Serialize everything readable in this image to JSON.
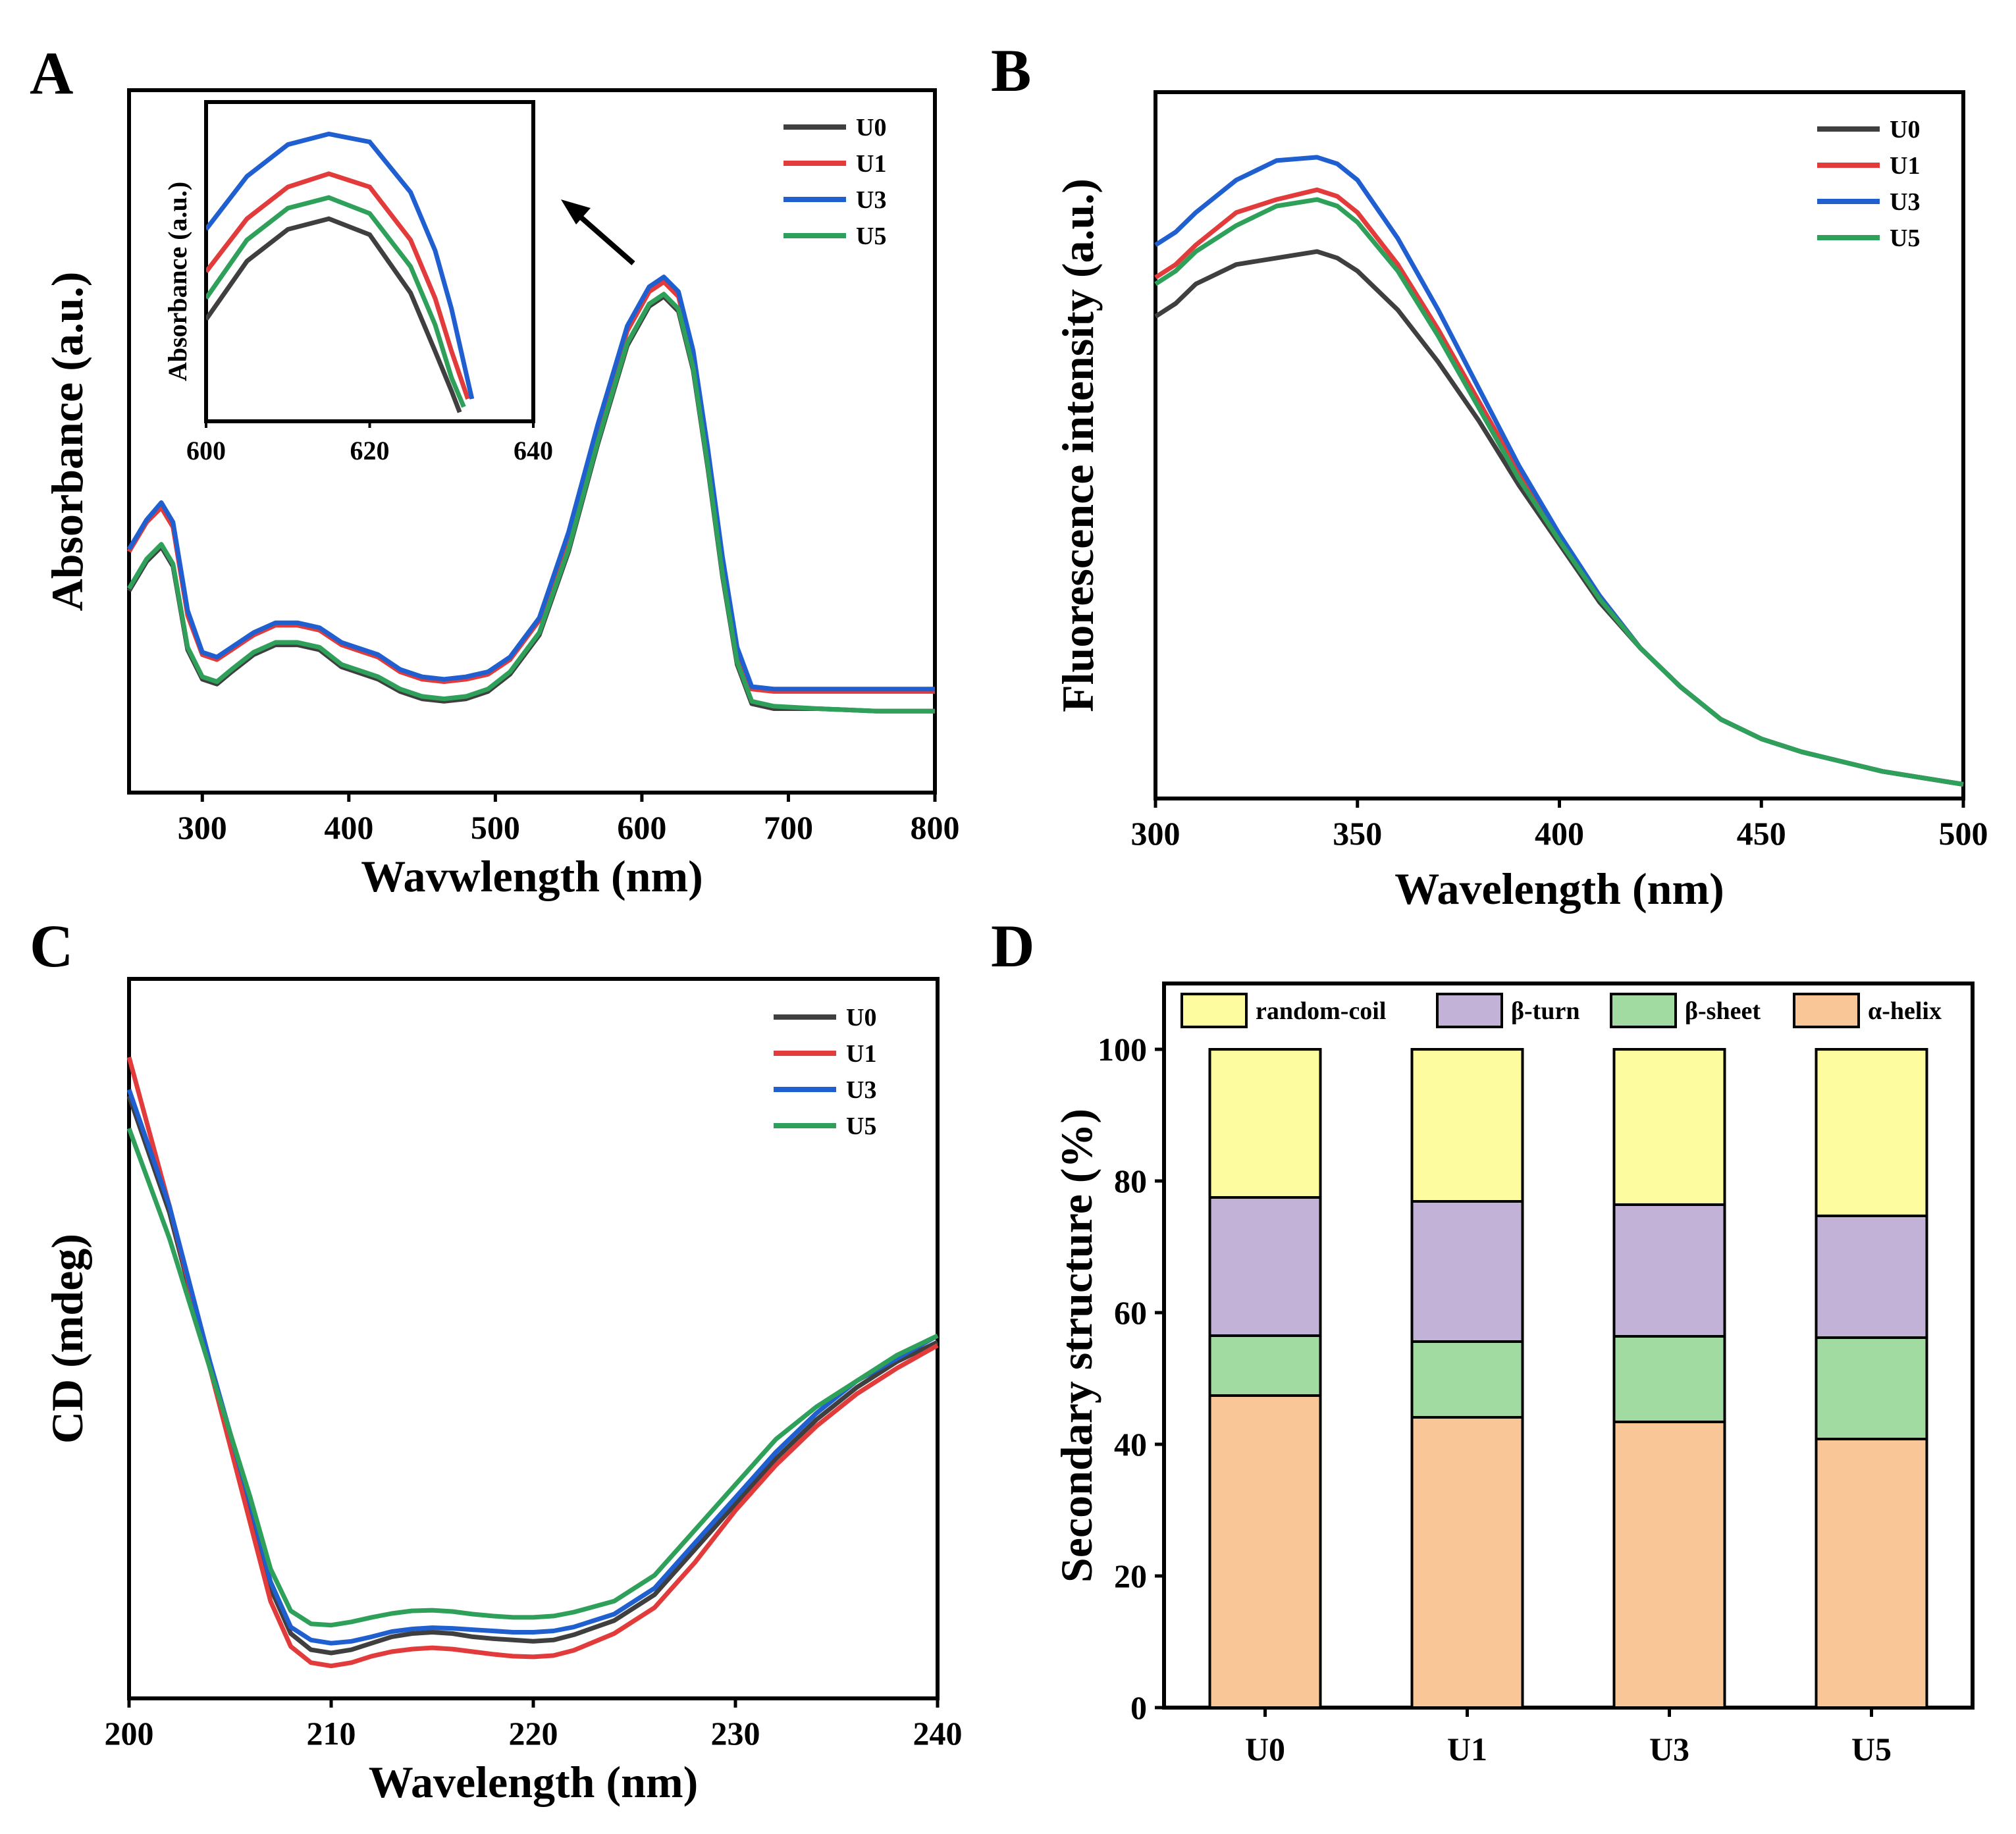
{
  "colors": {
    "U0": "#3f3f3f",
    "U1": "#e23b3b",
    "U3": "#1f5fcf",
    "U5": "#2ea05a",
    "random-coil": "#fdfda0",
    "beta-turn": "#c2b2d8",
    "beta-sheet": "#a1dba1",
    "alpha-helix": "#f9c698"
  },
  "chart_data": [
    {
      "panel": "A",
      "type": "line",
      "xlabel": "Wavwlength (nm)",
      "ylabel": "Absorbance (a.u.)",
      "xlim": [
        250,
        800
      ],
      "ylim": [
        0,
        1
      ],
      "xticks": [
        300,
        400,
        500,
        600,
        700,
        800
      ],
      "legend": [
        "U0",
        "U1",
        "U3",
        "U5"
      ],
      "legend_position": "top-right",
      "series": [
        {
          "name": "U0",
          "x": [
            250,
            262,
            272,
            280,
            290,
            300,
            310,
            320,
            335,
            350,
            365,
            380,
            395,
            410,
            420,
            435,
            450,
            465,
            480,
            495,
            510,
            530,
            550,
            570,
            590,
            605,
            615,
            625,
            635,
            645,
            655,
            665,
            675,
            690,
            720,
            760,
            800
          ],
          "y": [
            0.3,
            0.36,
            0.39,
            0.35,
            0.18,
            0.12,
            0.11,
            0.135,
            0.17,
            0.19,
            0.19,
            0.18,
            0.145,
            0.13,
            0.12,
            0.095,
            0.08,
            0.075,
            0.08,
            0.095,
            0.13,
            0.21,
            0.38,
            0.6,
            0.8,
            0.88,
            0.9,
            0.87,
            0.75,
            0.55,
            0.33,
            0.15,
            0.07,
            0.06,
            0.06,
            0.055,
            0.055
          ]
        },
        {
          "name": "U1",
          "x": [
            250,
            262,
            272,
            280,
            290,
            300,
            310,
            320,
            335,
            350,
            365,
            380,
            395,
            410,
            420,
            435,
            450,
            465,
            480,
            495,
            510,
            530,
            550,
            570,
            590,
            605,
            615,
            625,
            635,
            645,
            655,
            665,
            675,
            690,
            720,
            760,
            800
          ],
          "y": [
            0.38,
            0.44,
            0.47,
            0.43,
            0.25,
            0.17,
            0.16,
            0.18,
            0.21,
            0.23,
            0.23,
            0.22,
            0.19,
            0.175,
            0.165,
            0.135,
            0.12,
            0.115,
            0.12,
            0.13,
            0.16,
            0.24,
            0.41,
            0.63,
            0.83,
            0.91,
            0.93,
            0.9,
            0.78,
            0.58,
            0.36,
            0.18,
            0.1,
            0.095,
            0.095,
            0.095,
            0.095
          ]
        },
        {
          "name": "U3",
          "x": [
            250,
            262,
            272,
            280,
            290,
            300,
            310,
            320,
            335,
            350,
            365,
            380,
            395,
            410,
            420,
            435,
            450,
            465,
            480,
            495,
            510,
            530,
            550,
            570,
            590,
            605,
            615,
            625,
            635,
            645,
            655,
            665,
            675,
            690,
            720,
            760,
            800
          ],
          "y": [
            0.385,
            0.445,
            0.48,
            0.44,
            0.26,
            0.175,
            0.165,
            0.185,
            0.215,
            0.235,
            0.235,
            0.225,
            0.195,
            0.18,
            0.17,
            0.14,
            0.125,
            0.12,
            0.125,
            0.135,
            0.165,
            0.245,
            0.42,
            0.64,
            0.84,
            0.92,
            0.94,
            0.91,
            0.79,
            0.59,
            0.37,
            0.185,
            0.105,
            0.1,
            0.1,
            0.1,
            0.1
          ]
        },
        {
          "name": "U5",
          "x": [
            250,
            262,
            272,
            280,
            290,
            300,
            310,
            320,
            335,
            350,
            365,
            380,
            395,
            410,
            420,
            435,
            450,
            465,
            480,
            495,
            510,
            530,
            550,
            570,
            590,
            605,
            615,
            625,
            635,
            645,
            655,
            665,
            675,
            690,
            720,
            760,
            800
          ],
          "y": [
            0.305,
            0.365,
            0.395,
            0.355,
            0.185,
            0.125,
            0.115,
            0.14,
            0.175,
            0.195,
            0.195,
            0.185,
            0.15,
            0.135,
            0.125,
            0.1,
            0.085,
            0.08,
            0.085,
            0.1,
            0.135,
            0.215,
            0.385,
            0.605,
            0.805,
            0.885,
            0.905,
            0.875,
            0.755,
            0.555,
            0.335,
            0.155,
            0.075,
            0.065,
            0.06,
            0.055,
            0.055
          ]
        }
      ],
      "inset": {
        "xlabel": "",
        "ylabel": "Absorbance (a.u.)",
        "xlim": [
          600,
          640
        ],
        "ylim": [
          0,
          1
        ],
        "xticks": [
          600,
          620,
          640
        ],
        "series": [
          {
            "name": "U0",
            "x": [
              600,
              605,
              610,
              615,
              620,
              625,
              628,
              630,
              631
            ],
            "y": [
              0.3,
              0.52,
              0.64,
              0.68,
              0.62,
              0.4,
              0.18,
              0.03,
              -0.05
            ]
          },
          {
            "name": "U1",
            "x": [
              600,
              605,
              610,
              615,
              620,
              625,
              628,
              630,
              632
            ],
            "y": [
              0.48,
              0.68,
              0.8,
              0.85,
              0.8,
              0.6,
              0.38,
              0.18,
              0.0
            ]
          },
          {
            "name": "U3",
            "x": [
              600,
              605,
              610,
              615,
              620,
              625,
              628,
              630,
              632.5
            ],
            "y": [
              0.64,
              0.84,
              0.96,
              1.0,
              0.97,
              0.78,
              0.56,
              0.34,
              0.0
            ]
          },
          {
            "name": "U5",
            "x": [
              600,
              605,
              610,
              615,
              620,
              625,
              628,
              630,
              631.5
            ],
            "y": [
              0.38,
              0.6,
              0.72,
              0.76,
              0.7,
              0.5,
              0.28,
              0.08,
              -0.03
            ]
          }
        ]
      }
    },
    {
      "panel": "B",
      "type": "line",
      "xlabel": "Wavelength (nm)",
      "ylabel": "Fluorescence intensity (a.u.)",
      "xlim": [
        300,
        500
      ],
      "ylim": [
        0,
        1
      ],
      "xticks": [
        300,
        350,
        400,
        450,
        500
      ],
      "legend": [
        "U0",
        "U1",
        "U3",
        "U5"
      ],
      "legend_position": "top-right",
      "series": [
        {
          "name": "U0",
          "x": [
            300,
            305,
            310,
            320,
            330,
            340,
            345,
            350,
            360,
            370,
            380,
            390,
            400,
            410,
            420,
            430,
            440,
            450,
            460,
            470,
            480,
            490,
            500
          ],
          "y": [
            0.72,
            0.74,
            0.77,
            0.8,
            0.81,
            0.82,
            0.81,
            0.79,
            0.73,
            0.65,
            0.56,
            0.46,
            0.37,
            0.28,
            0.21,
            0.15,
            0.1,
            0.07,
            0.05,
            0.035,
            0.02,
            0.01,
            0.0
          ]
        },
        {
          "name": "U1",
          "x": [
            300,
            305,
            310,
            320,
            330,
            340,
            345,
            350,
            360,
            370,
            380,
            390,
            400,
            410,
            420,
            430,
            440,
            450,
            460,
            470,
            480,
            490,
            500
          ],
          "y": [
            0.78,
            0.8,
            0.83,
            0.88,
            0.9,
            0.915,
            0.905,
            0.88,
            0.8,
            0.7,
            0.59,
            0.48,
            0.38,
            0.29,
            0.21,
            0.15,
            0.1,
            0.07,
            0.05,
            0.035,
            0.02,
            0.01,
            0.0
          ]
        },
        {
          "name": "U3",
          "x": [
            300,
            305,
            310,
            320,
            330,
            340,
            345,
            350,
            360,
            370,
            380,
            390,
            400,
            410,
            420,
            430,
            440,
            450,
            460,
            470,
            480,
            490,
            500
          ],
          "y": [
            0.83,
            0.85,
            0.88,
            0.93,
            0.96,
            0.965,
            0.955,
            0.93,
            0.84,
            0.73,
            0.61,
            0.49,
            0.385,
            0.29,
            0.21,
            0.15,
            0.1,
            0.07,
            0.05,
            0.035,
            0.02,
            0.01,
            0.0
          ]
        },
        {
          "name": "U5",
          "x": [
            300,
            305,
            310,
            320,
            330,
            340,
            345,
            350,
            360,
            370,
            380,
            390,
            400,
            410,
            420,
            430,
            440,
            450,
            460,
            470,
            480,
            490,
            500
          ],
          "y": [
            0.77,
            0.79,
            0.82,
            0.86,
            0.89,
            0.9,
            0.89,
            0.865,
            0.79,
            0.69,
            0.58,
            0.47,
            0.375,
            0.285,
            0.21,
            0.15,
            0.1,
            0.07,
            0.05,
            0.035,
            0.02,
            0.01,
            0.0
          ]
        }
      ]
    },
    {
      "panel": "C",
      "type": "line",
      "xlabel": "Wavelength (nm)",
      "ylabel": "CD (mdeg)",
      "xlim": [
        200,
        240
      ],
      "ylim": [
        0,
        1
      ],
      "xticks": [
        200,
        210,
        220,
        230,
        240
      ],
      "legend": [
        "U0",
        "U1",
        "U3",
        "U5"
      ],
      "legend_position": "top-right",
      "series": [
        {
          "name": "U0",
          "x": [
            200,
            202,
            204,
            206,
            207,
            208,
            209,
            210,
            211,
            212,
            213,
            214,
            215,
            216,
            217,
            218,
            219,
            220,
            221,
            222,
            224,
            226,
            228,
            230,
            232,
            234,
            236,
            238,
            240
          ],
          "y": [
            0.92,
            0.74,
            0.5,
            0.28,
            0.16,
            0.09,
            0.065,
            0.06,
            0.065,
            0.075,
            0.085,
            0.09,
            0.092,
            0.09,
            0.085,
            0.082,
            0.08,
            0.078,
            0.08,
            0.088,
            0.11,
            0.15,
            0.22,
            0.29,
            0.36,
            0.42,
            0.47,
            0.51,
            0.54
          ]
        },
        {
          "name": "U1",
          "x": [
            200,
            202,
            204,
            206,
            207,
            208,
            209,
            210,
            211,
            212,
            213,
            214,
            215,
            216,
            217,
            218,
            219,
            220,
            221,
            222,
            224,
            226,
            228,
            230,
            232,
            234,
            236,
            238,
            240
          ],
          "y": [
            0.98,
            0.75,
            0.5,
            0.26,
            0.14,
            0.07,
            0.045,
            0.04,
            0.045,
            0.055,
            0.062,
            0.066,
            0.068,
            0.066,
            0.062,
            0.058,
            0.055,
            0.054,
            0.056,
            0.064,
            0.09,
            0.13,
            0.2,
            0.28,
            0.35,
            0.41,
            0.46,
            0.5,
            0.535
          ]
        },
        {
          "name": "U3",
          "x": [
            200,
            202,
            204,
            206,
            207,
            208,
            209,
            210,
            211,
            212,
            213,
            214,
            215,
            216,
            217,
            218,
            219,
            220,
            221,
            222,
            224,
            226,
            228,
            230,
            232,
            234,
            236,
            238,
            240
          ],
          "y": [
            0.93,
            0.75,
            0.51,
            0.29,
            0.17,
            0.1,
            0.08,
            0.075,
            0.078,
            0.085,
            0.093,
            0.097,
            0.099,
            0.098,
            0.096,
            0.094,
            0.092,
            0.092,
            0.094,
            0.1,
            0.12,
            0.16,
            0.23,
            0.3,
            0.37,
            0.43,
            0.48,
            0.515,
            0.55
          ]
        },
        {
          "name": "U5",
          "x": [
            200,
            202,
            204,
            206,
            207,
            208,
            209,
            210,
            211,
            212,
            213,
            214,
            215,
            216,
            217,
            218,
            219,
            220,
            221,
            222,
            224,
            226,
            228,
            230,
            232,
            234,
            236,
            238,
            240
          ],
          "y": [
            0.87,
            0.7,
            0.5,
            0.3,
            0.19,
            0.125,
            0.105,
            0.103,
            0.108,
            0.115,
            0.121,
            0.125,
            0.126,
            0.124,
            0.12,
            0.117,
            0.115,
            0.115,
            0.117,
            0.123,
            0.14,
            0.18,
            0.25,
            0.32,
            0.39,
            0.44,
            0.48,
            0.52,
            0.55
          ]
        }
      ]
    },
    {
      "panel": "D",
      "type": "bar",
      "stacked": true,
      "xlabel": "",
      "ylabel": "Secondary structure (%)",
      "ylim": [
        0,
        110
      ],
      "yticks": [
        0,
        20,
        40,
        60,
        80,
        100
      ],
      "categories": [
        "U0",
        "U1",
        "U3",
        "U5"
      ],
      "legend_position": "top",
      "series": [
        {
          "name": "α-helix",
          "key": "alpha-helix",
          "values": [
            47.4,
            44.1,
            43.4,
            40.8
          ]
        },
        {
          "name": "β-sheet",
          "key": "beta-sheet",
          "values": [
            9.1,
            11.5,
            13.0,
            15.4
          ]
        },
        {
          "name": "β-turn",
          "key": "beta-turn",
          "values": [
            21.0,
            21.3,
            20.0,
            18.5
          ]
        },
        {
          "name": "random-coil",
          "key": "random-coil",
          "values": [
            22.5,
            23.1,
            23.6,
            25.3
          ]
        }
      ],
      "legend_order": [
        "random-coil",
        "β-turn",
        "β-sheet",
        "α-helix"
      ]
    }
  ]
}
